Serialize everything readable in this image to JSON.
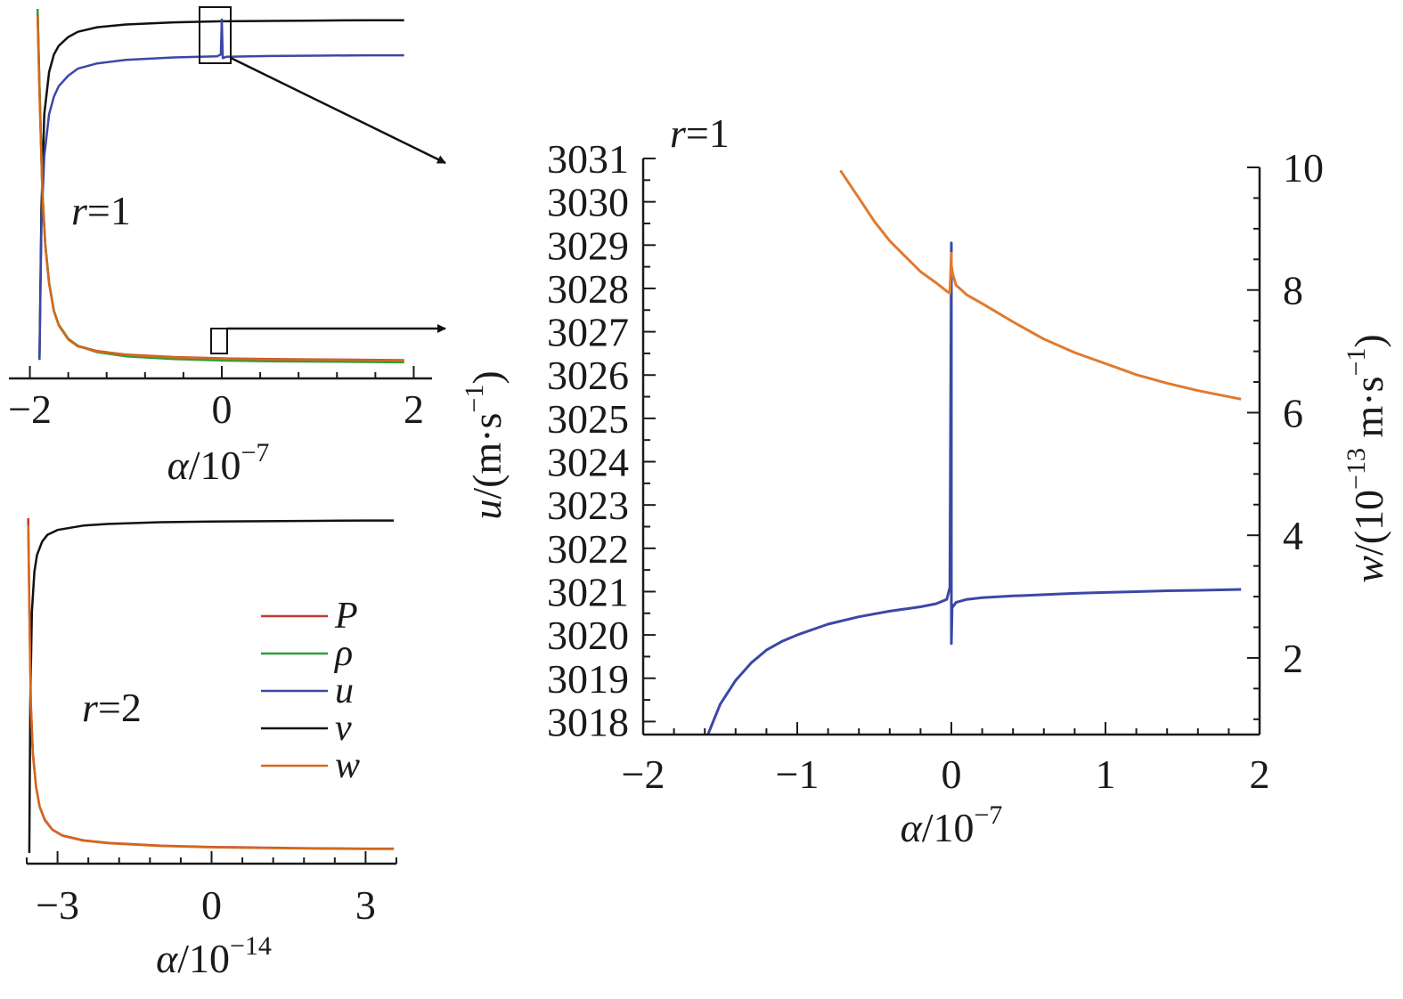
{
  "colors": {
    "P": "#c0392b",
    "rho": "#2e9e3a",
    "u": "#3b48a6",
    "v": "#111111",
    "w": "#d2691e",
    "w_zoom": "#e07a2e",
    "axis": "#1a1a1a"
  },
  "chart_data": [
    {
      "id": "top-left",
      "type": "line",
      "annotation": {
        "var": "r",
        "eq": "=1"
      },
      "x_axis": {
        "var": "α",
        "unit": "/10",
        "exp": "−7",
        "range": [
          -2.2,
          2.2
        ],
        "ticks": [
          -2,
          0,
          2
        ],
        "tick_labels": [
          "−2",
          "0",
          "2"
        ]
      },
      "y_axis": {
        "visible": false,
        "range": [
          0,
          1
        ]
      },
      "series": [
        {
          "name": "v",
          "color_key": "v",
          "x": [
            -1.9,
            -1.88,
            -1.85,
            -1.8,
            -1.75,
            -1.7,
            -1.6,
            -1.5,
            -1.3,
            -1.0,
            -0.5,
            0.0,
            0.5,
            1.0,
            1.5,
            1.9
          ],
          "y": [
            0.02,
            0.45,
            0.72,
            0.84,
            0.89,
            0.915,
            0.94,
            0.955,
            0.968,
            0.976,
            0.982,
            0.985,
            0.986,
            0.987,
            0.988,
            0.988
          ]
        },
        {
          "name": "u",
          "color_key": "u",
          "x": [
            -1.9,
            -1.88,
            -1.85,
            -1.8,
            -1.75,
            -1.7,
            -1.6,
            -1.5,
            -1.3,
            -1.0,
            -0.5,
            -0.05,
            -0.01,
            0.0,
            0.01,
            0.05,
            0.5,
            1.0,
            1.5,
            1.9
          ],
          "y": [
            0.02,
            0.4,
            0.6,
            0.72,
            0.77,
            0.8,
            0.83,
            0.85,
            0.865,
            0.875,
            0.882,
            0.885,
            0.89,
            0.99,
            0.88,
            0.884,
            0.886,
            0.887,
            0.888,
            0.888
          ]
        },
        {
          "name": "P",
          "color_key": "P",
          "x": [
            -1.92,
            -1.9,
            -1.87,
            -1.84,
            -1.8,
            -1.75,
            -1.7,
            -1.6,
            -1.5,
            -1.3,
            -1.0,
            -0.5,
            0.0,
            0.5,
            1.0,
            1.5,
            1.9
          ],
          "y": [
            1.02,
            0.8,
            0.5,
            0.35,
            0.24,
            0.16,
            0.12,
            0.08,
            0.06,
            0.045,
            0.035,
            0.028,
            0.024,
            0.022,
            0.021,
            0.02,
            0.019
          ]
        },
        {
          "name": "ρ",
          "color_key": "rho",
          "x": [
            -1.92,
            -1.9,
            -1.87,
            -1.84,
            -1.8,
            -1.75,
            -1.7,
            -1.6,
            -1.5,
            -1.3,
            -1.0,
            -0.5,
            0.0,
            0.5,
            1.0,
            1.5,
            1.9
          ],
          "y": [
            1.02,
            0.8,
            0.5,
            0.35,
            0.24,
            0.16,
            0.12,
            0.08,
            0.06,
            0.042,
            0.03,
            0.022,
            0.018,
            0.016,
            0.015,
            0.014,
            0.013
          ]
        },
        {
          "name": "w",
          "color_key": "w",
          "x": [
            -1.92,
            -1.9,
            -1.87,
            -1.84,
            -1.8,
            -1.75,
            -1.7,
            -1.6,
            -1.5,
            -1.3,
            -1.0,
            -0.5,
            0.0,
            0.5,
            1.0,
            1.5,
            1.9
          ],
          "y": [
            1.0,
            0.78,
            0.49,
            0.345,
            0.237,
            0.158,
            0.118,
            0.078,
            0.058,
            0.044,
            0.034,
            0.027,
            0.023,
            0.021,
            0.02,
            0.019,
            0.018
          ]
        }
      ]
    },
    {
      "id": "bottom-left",
      "type": "line",
      "annotation": {
        "var": "r",
        "eq": "=2"
      },
      "x_axis": {
        "var": "α",
        "unit": "/10",
        "exp": "−14",
        "range": [
          -3.6,
          3.6
        ],
        "ticks": [
          -3,
          0,
          3
        ],
        "tick_labels": [
          "−3",
          "0",
          "3"
        ]
      },
      "y_axis": {
        "visible": false,
        "range": [
          0,
          1
        ]
      },
      "series": [
        {
          "name": "v",
          "color_key": "v",
          "x": [
            -3.55,
            -3.53,
            -3.5,
            -3.45,
            -3.4,
            -3.3,
            -3.2,
            -3.0,
            -2.5,
            -2.0,
            -1.0,
            0.0,
            1.0,
            2.0,
            3.0,
            3.55
          ],
          "y": [
            0.0,
            0.45,
            0.72,
            0.84,
            0.89,
            0.93,
            0.95,
            0.965,
            0.978,
            0.983,
            0.988,
            0.99,
            0.991,
            0.992,
            0.993,
            0.993
          ]
        },
        {
          "name": "P",
          "color_key": "P",
          "x": [
            -3.57,
            -3.55,
            -3.52,
            -3.48,
            -3.42,
            -3.35,
            -3.25,
            -3.1,
            -2.9,
            -2.5,
            -2.0,
            -1.0,
            0.0,
            1.0,
            2.0,
            3.0,
            3.55
          ],
          "y": [
            1.0,
            0.75,
            0.45,
            0.3,
            0.2,
            0.14,
            0.1,
            0.07,
            0.052,
            0.038,
            0.03,
            0.022,
            0.018,
            0.016,
            0.014,
            0.013,
            0.013
          ]
        },
        {
          "name": "w",
          "color_key": "w",
          "x": [
            -3.57,
            -3.55,
            -3.52,
            -3.48,
            -3.42,
            -3.35,
            -3.25,
            -3.1,
            -2.9,
            -2.5,
            -2.0,
            -1.0,
            0.0,
            1.0,
            2.0,
            3.0,
            3.55
          ],
          "y": [
            0.98,
            0.74,
            0.44,
            0.295,
            0.198,
            0.138,
            0.098,
            0.069,
            0.051,
            0.037,
            0.029,
            0.021,
            0.017,
            0.015,
            0.013,
            0.012,
            0.012
          ]
        }
      ],
      "legend": {
        "placement": "right-middle",
        "entries": [
          {
            "label": "P",
            "color_key": "P"
          },
          {
            "label": "ρ",
            "color_key": "rho"
          },
          {
            "label": "u",
            "color_key": "u"
          },
          {
            "label": "v",
            "color_key": "v"
          },
          {
            "label": "w",
            "color_key": "w"
          }
        ]
      }
    },
    {
      "id": "right-zoom",
      "type": "line",
      "annotation": {
        "var": "r",
        "eq": "=1"
      },
      "x_axis": {
        "var": "α",
        "unit": "/10",
        "exp": "−7",
        "range": [
          -2,
          2
        ],
        "ticks": [
          -2,
          -1,
          0,
          1,
          2
        ],
        "tick_labels": [
          "−2",
          "−1",
          "0",
          "1",
          "2"
        ]
      },
      "y_axis": {
        "var": "u",
        "unit_pre": "/(m·s",
        "unit_exp": "−1",
        "unit_post": ")",
        "range": [
          3017.7,
          3031
        ],
        "ticks": [
          3018,
          3019,
          3020,
          3021,
          3022,
          3023,
          3024,
          3025,
          3026,
          3027,
          3028,
          3029,
          3030,
          3031
        ],
        "tick_labels": [
          "3018",
          "3019",
          "3020",
          "3021",
          "3022",
          "3023",
          "3024",
          "3025",
          "3026",
          "3027",
          "3028",
          "3029",
          "3030",
          "3031"
        ]
      },
      "y2_axis": {
        "var": "w",
        "unit_pre": "/(10",
        "unit_exp1": "−13",
        "unit_mid": " m·s",
        "unit_exp2": "−1",
        "unit_post": ")",
        "range": [
          0.75,
          10
        ],
        "ticks": [
          2,
          4,
          6,
          8,
          10
        ],
        "tick_labels": [
          "2",
          "4",
          "6",
          "8",
          "10"
        ]
      },
      "series": [
        {
          "name": "u",
          "color_key": "u",
          "axis": "left",
          "x": [
            -1.58,
            -1.5,
            -1.4,
            -1.3,
            -1.2,
            -1.1,
            -1.0,
            -0.8,
            -0.6,
            -0.4,
            -0.2,
            -0.1,
            -0.03,
            -0.01,
            0.0,
            0.0,
            0.005,
            0.01,
            0.03,
            0.1,
            0.2,
            0.4,
            0.6,
            0.8,
            1.0,
            1.2,
            1.4,
            1.6,
            1.88
          ],
          "y": [
            3017.7,
            3018.4,
            3018.95,
            3019.35,
            3019.65,
            3019.85,
            3020.0,
            3020.25,
            3020.42,
            3020.55,
            3020.65,
            3020.72,
            3020.82,
            3021.1,
            3029.05,
            3019.8,
            3020.7,
            3020.65,
            3020.75,
            3020.82,
            3020.86,
            3020.9,
            3020.93,
            3020.96,
            3020.98,
            3021.0,
            3021.02,
            3021.03,
            3021.05
          ]
        },
        {
          "name": "w",
          "color_key": "w_zoom",
          "axis": "right",
          "x": [
            -0.72,
            -0.6,
            -0.5,
            -0.4,
            -0.3,
            -0.2,
            -0.1,
            -0.03,
            -0.01,
            0.0,
            0.0,
            0.01,
            0.03,
            0.1,
            0.2,
            0.4,
            0.6,
            0.8,
            1.0,
            1.2,
            1.4,
            1.6,
            1.88
          ],
          "y": [
            9.95,
            9.5,
            9.12,
            8.8,
            8.55,
            8.3,
            8.12,
            7.98,
            7.95,
            8.6,
            8.4,
            8.25,
            8.08,
            7.92,
            7.78,
            7.48,
            7.2,
            6.98,
            6.8,
            6.62,
            6.48,
            6.36,
            6.22
          ]
        }
      ]
    }
  ]
}
